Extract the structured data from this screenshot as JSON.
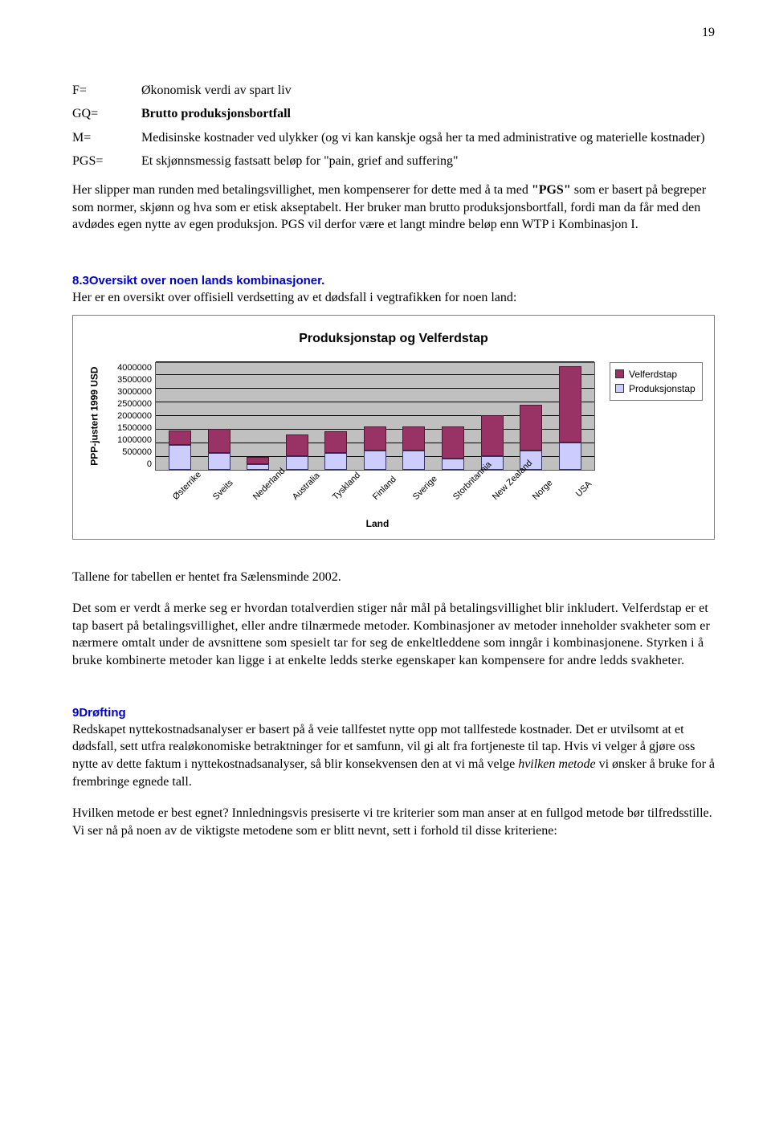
{
  "page_number": "19",
  "definitions": [
    {
      "key": "F=",
      "val": "Økonomisk verdi av spart liv"
    },
    {
      "key": "GQ=",
      "val": "Brutto produksjonsbortfall",
      "bold": true
    },
    {
      "key": "M=",
      "val": "Medisinske kostnader ved ulykker (og vi kan kanskje også her ta med administrative og materielle kostnader)"
    },
    {
      "key": "PGS=",
      "val": "Et skjønnsmessig fastsatt beløp for \"pain, grief and suffering\""
    }
  ],
  "para1_a": "Her slipper man runden med betalingsvillighet, men kompenserer for dette med å ta med ",
  "para1_pgs": "\"PGS\"",
  "para1_b": " som er basert på begreper som normer, skjønn og hva som er etisk akseptabelt. Her bruker man brutto produksjonsbortfall, fordi man da får med den avdødes egen nytte av egen produksjon. PGS vil derfor være et langt mindre beløp enn WTP i Kombinasjon I.",
  "section8_label": "8.3Oversikt over noen lands kombinasjoner.",
  "section8_intro": "Her er en oversikt over offisiell verdsetting av et dødsfall i vegtrafikken for noen land:",
  "chart": {
    "title": "Produksjonstap og Velferdstap",
    "y_label": "PPP-justert 1999 USD",
    "x_label": "Land",
    "y_max": 4000000,
    "y_ticks": [
      "4000000",
      "3500000",
      "3000000",
      "2500000",
      "2000000",
      "1500000",
      "1000000",
      "500000",
      "0"
    ],
    "legend": [
      {
        "label": "Velferdstap",
        "color": "#993366"
      },
      {
        "label": "Produksjonstap",
        "color": "#ccccff"
      }
    ],
    "categories": [
      "Østerrike",
      "Sveits",
      "Nederland",
      "Australia",
      "Tyskland",
      "Finland",
      "Sverige",
      "Storbritannia",
      "New Zealand",
      "Norge",
      "USA"
    ],
    "produksjonstap": [
      900000,
      600000,
      200000,
      500000,
      600000,
      700000,
      700000,
      400000,
      500000,
      700000,
      1000000
    ],
    "velferdstap": [
      550000,
      900000,
      250000,
      800000,
      800000,
      900000,
      900000,
      1200000,
      1500000,
      1700000,
      2800000
    ],
    "bar_prod_color": "#ccccff",
    "bar_velf_color": "#993366",
    "plot_bg": "#c0c0c0"
  },
  "para2": "Tallene for tabellen er hentet fra Sælensminde 2002.",
  "para3": "Det som er verdt å merke seg er hvordan totalverdien stiger når mål på betalingsvillighet blir inkludert. Velferdstap er et tap basert på betalingsvillighet, eller andre tilnærmede metoder. Kombinasjoner av metoder inneholder svakheter som er nærmere omtalt under de avsnittene som spesielt tar for seg de enkeltleddene som inngår i kombinasjonene. Styrken i å bruke kombinerte metoder kan ligge i at enkelte ledds sterke egenskaper kan kompensere for andre ledds svakheter.",
  "section9_label": "9Drøfting",
  "para4_a": "Redskapet nyttekostnadsanalyser er basert på å veie tallfestet nytte opp mot tallfestede kostnader. Det er utvilsomt at et dødsfall, sett utfra realøkonomiske betraktninger for et samfunn, vil gi alt fra fortjeneste til tap. Hvis vi velger å gjøre oss nytte av dette faktum i nyttekostnadsanalyser, så blir konsekvensen den at vi må velge ",
  "para4_italic": "hvilken metode",
  "para4_b": " vi ønsker å bruke for å frembringe egnede tall.",
  "para5": "Hvilken metode er best egnet?  Innledningsvis presiserte vi tre kriterier som man anser at en fullgod metode bør tilfredsstille. Vi ser nå på noen av de viktigste metodene som er blitt nevnt, sett i forhold til disse kriteriene:"
}
